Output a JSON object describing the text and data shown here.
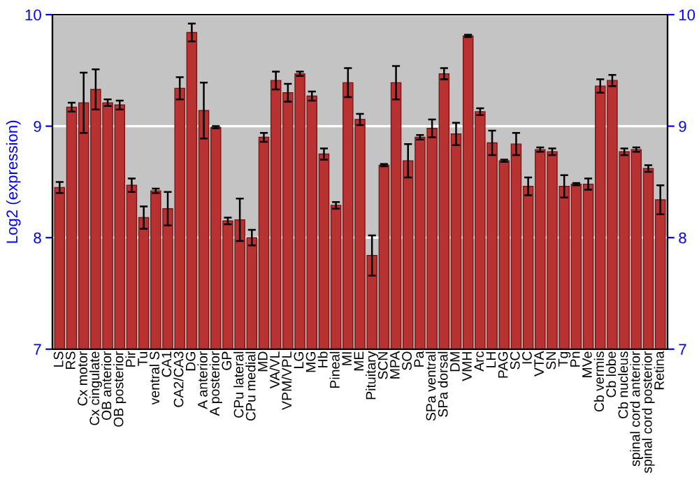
{
  "chart_data": {
    "type": "bar",
    "ylabel": "Log2 (expression)",
    "categories": [
      "LS",
      "RS",
      "Cx motor",
      "Cx cingulate",
      "OB anterior",
      "OB posterior",
      "Pir",
      "Tu",
      "ventral S",
      "CA1",
      "CA2/CA3",
      "DG",
      "A anterior",
      "A posterior",
      "GP",
      "CPu lateral",
      "CPu medial",
      "MD",
      "VA/VL",
      "VPM/VPL",
      "LG",
      "MG",
      "Hb",
      "Pineal",
      "MI",
      "ME",
      "Pituitary",
      "SCN",
      "MPA",
      "SO",
      "Pa",
      "SPa ventral",
      "SPa dorsal",
      "DM",
      "VMH",
      "Arc",
      "LH",
      "PAG",
      "SC",
      "IC",
      "VTA",
      "SN",
      "Tg",
      "Pn",
      "MVe",
      "Cb vermis",
      "Cb lobe",
      "Cb nucleus",
      "spinal cord anterior",
      "spinal cord posterior",
      "Retina"
    ],
    "values": [
      8.45,
      9.17,
      9.21,
      9.33,
      9.21,
      9.19,
      8.47,
      8.18,
      8.42,
      8.26,
      9.34,
      9.84,
      9.14,
      8.99,
      8.15,
      8.16,
      8.0,
      8.9,
      9.41,
      9.3,
      9.47,
      9.27,
      8.75,
      8.29,
      9.39,
      9.06,
      7.84,
      8.65,
      9.39,
      8.69,
      8.9,
      8.98,
      9.47,
      8.93,
      9.81,
      9.13,
      8.85,
      8.69,
      8.84,
      8.46,
      8.79,
      8.77,
      8.46,
      8.48,
      8.48,
      9.36,
      9.41,
      8.77,
      8.79,
      8.62,
      8.34
    ],
    "errors": [
      0.05,
      0.04,
      0.27,
      0.18,
      0.03,
      0.04,
      0.06,
      0.1,
      0.02,
      0.15,
      0.1,
      0.08,
      0.25,
      0.01,
      0.03,
      0.19,
      0.07,
      0.04,
      0.08,
      0.08,
      0.02,
      0.04,
      0.05,
      0.03,
      0.13,
      0.05,
      0.18,
      0.01,
      0.15,
      0.15,
      0.02,
      0.08,
      0.05,
      0.1,
      0.01,
      0.03,
      0.11,
      0.01,
      0.1,
      0.08,
      0.02,
      0.03,
      0.1,
      0.01,
      0.05,
      0.06,
      0.05,
      0.03,
      0.02,
      0.03,
      0.13
    ],
    "color": "#b83232",
    "ylim": [
      7,
      10
    ],
    "yticks": [
      7,
      8,
      9,
      10
    ],
    "y2lim": [
      7,
      10
    ],
    "y2ticks": [
      7,
      8,
      9,
      10
    ],
    "grid": "y"
  }
}
